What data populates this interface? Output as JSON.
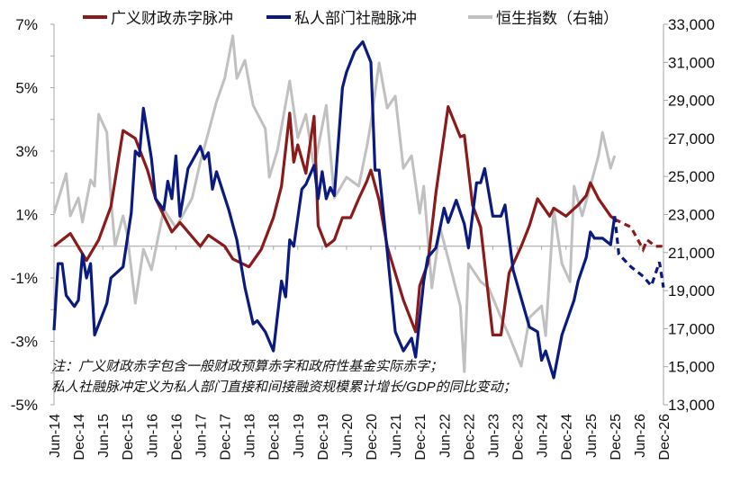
{
  "legend": {
    "fiscal": "广义财政赤字脉冲",
    "credit": "私人部门社融脉冲",
    "hsi": "恒生指数（右轴）"
  },
  "notes": [
    "注：广义财政赤字包含一般财政预算赤字和政府性基金实际赤字；",
    "私人社融脉冲定义为私人部门直接和间接融资规模累计增长/GDP的同比变动；"
  ],
  "chart_data": {
    "type": "line",
    "title": "",
    "xlabel": "",
    "ylabel": "",
    "x_tick_labels": [
      "Jun-14",
      "Dec-14",
      "Jun-15",
      "Dec-15",
      "Jun-16",
      "Dec-16",
      "Jun-17",
      "Dec-17",
      "Jun-18",
      "Dec-18",
      "Jun-19",
      "Dec-19",
      "Jun-20",
      "Dec-20",
      "Jun-21",
      "Dec-21",
      "Jun-22",
      "Dec-22",
      "Jun-23",
      "Dec-23",
      "Jun-24",
      "Dec-24",
      "Jun-25",
      "Dec-25",
      "Jun-26",
      "Dec-26"
    ],
    "xlim": [
      "2014-06",
      "2026-12"
    ],
    "y_left": {
      "ylim": [
        -5,
        7
      ],
      "tick_labels": [
        "-5%",
        "-3%",
        "-1%",
        "1%",
        "3%",
        "5%",
        "7%"
      ],
      "ticks": [
        -5,
        -3,
        -1,
        1,
        3,
        5,
        7
      ]
    },
    "y_right": {
      "ylim": [
        13000,
        33000
      ],
      "tick_labels": [
        "13,000",
        "15,000",
        "17,000",
        "19,000",
        "21,000",
        "23,000",
        "25,000",
        "27,000",
        "29,000",
        "31,000",
        "33,000"
      ],
      "ticks": [
        13000,
        15000,
        17000,
        19000,
        21000,
        23000,
        25000,
        27000,
        29000,
        31000,
        33000
      ]
    },
    "reference_line": 0,
    "grid": false,
    "legend_position": "top",
    "series": [
      {
        "name": "广义财政赤字脉冲",
        "axis": "left",
        "color": "#8B1A1A",
        "forecast_from": "2025-12",
        "points": [
          [
            "2014-06",
            0.0
          ],
          [
            "2014-10",
            0.4
          ],
          [
            "2015-02",
            -0.45
          ],
          [
            "2015-05",
            0.2
          ],
          [
            "2015-08",
            1.25
          ],
          [
            "2015-11",
            3.65
          ],
          [
            "2016-02",
            3.4
          ],
          [
            "2016-05",
            2.4
          ],
          [
            "2016-07",
            1.5
          ],
          [
            "2016-11",
            0.45
          ],
          [
            "2017-01",
            0.75
          ],
          [
            "2017-06",
            0.0
          ],
          [
            "2017-08",
            0.35
          ],
          [
            "2017-12",
            0.0
          ],
          [
            "2018-02",
            -0.4
          ],
          [
            "2018-06",
            -0.65
          ],
          [
            "2018-09",
            -0.1
          ],
          [
            "2018-12",
            0.9
          ],
          [
            "2019-02",
            1.9
          ],
          [
            "2019-04",
            4.2
          ],
          [
            "2019-05",
            2.65
          ],
          [
            "2019-06",
            3.2
          ],
          [
            "2019-08",
            2.3
          ],
          [
            "2019-10",
            4.1
          ],
          [
            "2019-11",
            0.65
          ],
          [
            "2020-01",
            0.0
          ],
          [
            "2020-03",
            0.2
          ],
          [
            "2020-05",
            0.9
          ],
          [
            "2020-07",
            0.9
          ],
          [
            "2020-09",
            1.5
          ],
          [
            "2020-11",
            2.05
          ],
          [
            "2020-12",
            2.4
          ],
          [
            "2021-02",
            1.45
          ],
          [
            "2021-04",
            0.0
          ],
          [
            "2021-08",
            -1.7
          ],
          [
            "2021-11",
            -2.7
          ],
          [
            "2021-12",
            -1.25
          ],
          [
            "2022-02",
            -0.55
          ],
          [
            "2022-04",
            1.7
          ],
          [
            "2022-07",
            4.4
          ],
          [
            "2022-10",
            3.45
          ],
          [
            "2022-11",
            3.5
          ],
          [
            "2023-01",
            1.3
          ],
          [
            "2023-03",
            0.6
          ],
          [
            "2023-06",
            -2.8
          ],
          [
            "2023-08",
            -2.8
          ],
          [
            "2023-10",
            -0.85
          ],
          [
            "2024-01",
            0.0
          ],
          [
            "2024-03",
            0.65
          ],
          [
            "2024-05",
            1.5
          ],
          [
            "2024-08",
            0.95
          ],
          [
            "2024-09",
            1.2
          ],
          [
            "2024-12",
            0.95
          ],
          [
            "2025-03",
            1.3
          ],
          [
            "2025-05",
            1.6
          ],
          [
            "2025-06",
            2.0
          ],
          [
            "2025-08",
            1.5
          ],
          [
            "2025-11",
            0.95
          ],
          [
            "2025-12",
            0.85
          ],
          [
            "2026-04",
            0.6
          ],
          [
            "2026-07",
            -0.1
          ],
          [
            "2026-08",
            0.2
          ],
          [
            "2026-10",
            0.0
          ],
          [
            "2026-12",
            0.0
          ]
        ]
      },
      {
        "name": "私人部门社融脉冲",
        "axis": "left",
        "color": "#0A1A80",
        "forecast_from": "2025-12",
        "points": [
          [
            "2014-06",
            -2.65
          ],
          [
            "2014-07",
            -0.55
          ],
          [
            "2014-08",
            -0.55
          ],
          [
            "2014-09",
            -1.55
          ],
          [
            "2014-11",
            -1.9
          ],
          [
            "2014-12",
            -1.7
          ],
          [
            "2015-01",
            -0.25
          ],
          [
            "2015-02",
            -1.0
          ],
          [
            "2015-03",
            -0.55
          ],
          [
            "2015-04",
            -2.8
          ],
          [
            "2015-07",
            -1.8
          ],
          [
            "2015-08",
            -1.0
          ],
          [
            "2015-11",
            -0.65
          ],
          [
            "2016-01",
            1.05
          ],
          [
            "2016-02",
            3.0
          ],
          [
            "2016-03",
            2.85
          ],
          [
            "2016-04",
            4.35
          ],
          [
            "2016-06",
            2.75
          ],
          [
            "2016-07",
            1.5
          ],
          [
            "2016-09",
            1.15
          ],
          [
            "2016-10",
            2.05
          ],
          [
            "2016-11",
            1.5
          ],
          [
            "2016-12",
            2.85
          ],
          [
            "2017-01",
            0.95
          ],
          [
            "2017-03",
            2.45
          ],
          [
            "2017-06",
            3.15
          ],
          [
            "2017-07",
            2.75
          ],
          [
            "2017-08",
            2.95
          ],
          [
            "2017-09",
            1.8
          ],
          [
            "2017-10",
            2.35
          ],
          [
            "2018-01",
            1.15
          ],
          [
            "2018-03",
            0.2
          ],
          [
            "2018-05",
            -1.3
          ],
          [
            "2018-07",
            -2.45
          ],
          [
            "2018-08",
            -2.35
          ],
          [
            "2018-10",
            -2.7
          ],
          [
            "2018-12",
            -3.3
          ],
          [
            "2019-02",
            -1.1
          ],
          [
            "2019-03",
            -1.6
          ],
          [
            "2019-04",
            0.2
          ],
          [
            "2019-05",
            0.0
          ],
          [
            "2019-07",
            1.8
          ],
          [
            "2019-08",
            1.95
          ],
          [
            "2019-10",
            2.55
          ],
          [
            "2019-11",
            1.5
          ],
          [
            "2019-12",
            2.35
          ],
          [
            "2020-01",
            1.5
          ],
          [
            "2020-02",
            1.85
          ],
          [
            "2020-03",
            1.6
          ],
          [
            "2020-05",
            5.0
          ],
          [
            "2020-06",
            5.5
          ],
          [
            "2020-08",
            6.15
          ],
          [
            "2020-10",
            6.45
          ],
          [
            "2020-12",
            5.8
          ],
          [
            "2021-01",
            2.4
          ],
          [
            "2021-02",
            2.4
          ],
          [
            "2021-04",
            -0.15
          ],
          [
            "2021-06",
            -2.7
          ],
          [
            "2021-08",
            -3.3
          ],
          [
            "2021-10",
            -2.9
          ],
          [
            "2021-11",
            -3.5
          ],
          [
            "2022-01",
            -1.1
          ],
          [
            "2022-02",
            -0.35
          ],
          [
            "2022-04",
            -0.05
          ],
          [
            "2022-06",
            1.2
          ],
          [
            "2022-07",
            0.75
          ],
          [
            "2022-09",
            1.45
          ],
          [
            "2022-11",
            0.7
          ],
          [
            "2022-12",
            -0.05
          ],
          [
            "2023-02",
            2.0
          ],
          [
            "2023-03",
            2.0
          ],
          [
            "2023-04",
            2.45
          ],
          [
            "2023-06",
            0.95
          ],
          [
            "2023-08",
            0.95
          ],
          [
            "2023-09",
            1.3
          ],
          [
            "2023-11",
            -0.75
          ],
          [
            "2024-03",
            -2.55
          ],
          [
            "2024-05",
            -2.7
          ],
          [
            "2024-06",
            -3.6
          ],
          [
            "2024-07",
            -3.3
          ],
          [
            "2024-09",
            -4.15
          ],
          [
            "2024-11",
            -2.8
          ],
          [
            "2025-02",
            -1.7
          ],
          [
            "2025-03",
            -1.1
          ],
          [
            "2025-05",
            -0.35
          ],
          [
            "2025-06",
            0.45
          ],
          [
            "2025-07",
            0.25
          ],
          [
            "2025-09",
            0.25
          ],
          [
            "2025-11",
            0.05
          ],
          [
            "2025-12",
            0.95
          ],
          [
            "2026-01",
            -0.25
          ],
          [
            "2026-04",
            -0.65
          ],
          [
            "2026-07",
            -0.95
          ],
          [
            "2026-09",
            -1.25
          ],
          [
            "2026-11",
            -0.5
          ],
          [
            "2026-12",
            -1.3
          ]
        ]
      },
      {
        "name": "恒生指数（右轴）",
        "axis": "right",
        "color": "#C0C0C0",
        "points": [
          [
            "2014-06",
            23070
          ],
          [
            "2014-09",
            25150
          ],
          [
            "2014-10",
            22930
          ],
          [
            "2014-12",
            23870
          ],
          [
            "2015-01",
            22600
          ],
          [
            "2015-03",
            24820
          ],
          [
            "2015-04",
            24490
          ],
          [
            "2015-05",
            28270
          ],
          [
            "2015-07",
            27320
          ],
          [
            "2015-08",
            23870
          ],
          [
            "2015-09",
            21360
          ],
          [
            "2015-11",
            22930
          ],
          [
            "2015-12",
            21980
          ],
          [
            "2016-02",
            18340
          ],
          [
            "2016-04",
            21180
          ],
          [
            "2016-06",
            20090
          ],
          [
            "2016-09",
            23260
          ],
          [
            "2016-12",
            22310
          ],
          [
            "2017-04",
            23870
          ],
          [
            "2017-06",
            25760
          ],
          [
            "2017-08",
            27320
          ],
          [
            "2017-10",
            28930
          ],
          [
            "2017-12",
            30160
          ],
          [
            "2018-02",
            32390
          ],
          [
            "2018-03",
            30160
          ],
          [
            "2018-05",
            31110
          ],
          [
            "2018-07",
            28740
          ],
          [
            "2018-10",
            27510
          ],
          [
            "2018-11",
            24960
          ],
          [
            "2019-01",
            26380
          ],
          [
            "2019-04",
            30020
          ],
          [
            "2019-06",
            27040
          ],
          [
            "2019-08",
            28270
          ],
          [
            "2019-10",
            25430
          ],
          [
            "2020-01",
            28740
          ],
          [
            "2020-03",
            23870
          ],
          [
            "2020-06",
            24960
          ],
          [
            "2020-09",
            24490
          ],
          [
            "2020-11",
            26570
          ],
          [
            "2020-12",
            27800
          ],
          [
            "2021-02",
            30970
          ],
          [
            "2021-04",
            28600
          ],
          [
            "2021-06",
            29220
          ],
          [
            "2021-08",
            25430
          ],
          [
            "2021-10",
            26090
          ],
          [
            "2021-12",
            23070
          ],
          [
            "2022-01",
            24490
          ],
          [
            "2022-03",
            19140
          ],
          [
            "2022-05",
            22310
          ],
          [
            "2022-07",
            20700
          ],
          [
            "2022-10",
            18190
          ],
          [
            "2022-11",
            14740
          ],
          [
            "2022-12",
            20420
          ],
          [
            "2023-03",
            19470
          ],
          [
            "2023-05",
            19140
          ],
          [
            "2023-08",
            17580
          ],
          [
            "2023-10",
            16630
          ],
          [
            "2024-01",
            15030
          ],
          [
            "2024-03",
            17580
          ],
          [
            "2024-06",
            18190
          ],
          [
            "2024-07",
            16630
          ],
          [
            "2024-09",
            23260
          ],
          [
            "2024-11",
            20420
          ],
          [
            "2025-01",
            19470
          ],
          [
            "2025-02",
            24490
          ],
          [
            "2025-04",
            22930
          ],
          [
            "2025-06",
            24490
          ],
          [
            "2025-08",
            26090
          ],
          [
            "2025-09",
            27320
          ],
          [
            "2025-11",
            25430
          ],
          [
            "2025-12",
            26090
          ]
        ]
      }
    ]
  }
}
